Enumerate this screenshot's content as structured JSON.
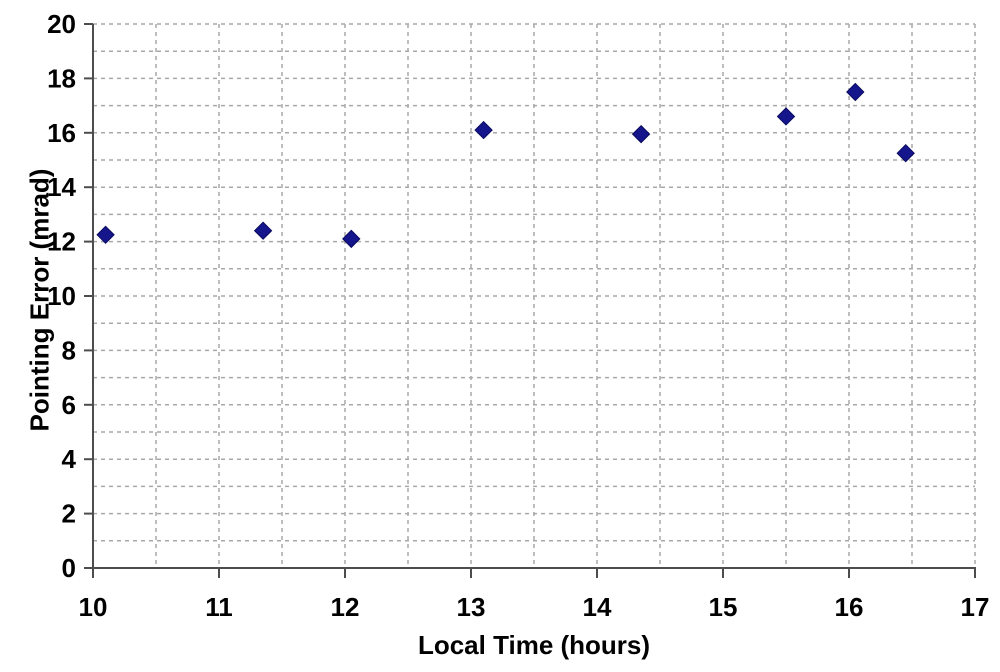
{
  "chart_data": {
    "type": "scatter",
    "title": "",
    "xlabel": "Local Time (hours)",
    "ylabel": "Pointing Error (mrad)",
    "xlim": [
      10,
      17
    ],
    "ylim": [
      0,
      20
    ],
    "x_major_ticks": [
      10,
      11,
      12,
      13,
      14,
      15,
      16,
      17
    ],
    "y_major_ticks": [
      0,
      2,
      4,
      6,
      8,
      10,
      12,
      14,
      16,
      18,
      20
    ],
    "x_grid_step": 0.5,
    "y_grid_step": 1,
    "grid": true,
    "grid_style": "dashed",
    "legend": "none",
    "series_name": "Pointing Error",
    "marker": "diamond",
    "points": [
      {
        "x": 10.1,
        "y": 12.25
      },
      {
        "x": 11.35,
        "y": 12.4
      },
      {
        "x": 12.05,
        "y": 12.1
      },
      {
        "x": 13.1,
        "y": 16.1
      },
      {
        "x": 14.35,
        "y": 15.95
      },
      {
        "x": 15.5,
        "y": 16.6
      },
      {
        "x": 16.05,
        "y": 17.5
      },
      {
        "x": 16.45,
        "y": 15.25
      }
    ],
    "colors": {
      "marker_fill": "#15158C",
      "marker_edge": "#0A0A5E",
      "grid": "#A9A9A9",
      "axis": "#4D4D4D",
      "tick_label": "#000000",
      "background": "#FFFFFF"
    }
  }
}
